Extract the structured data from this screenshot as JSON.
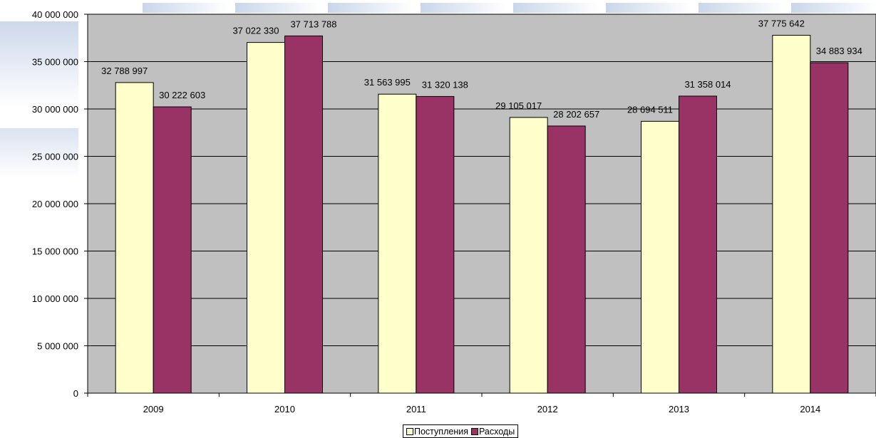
{
  "chart_data": {
    "type": "bar",
    "categories": [
      "2009",
      "2010",
      "2011",
      "2012",
      "2013",
      "2014"
    ],
    "series": [
      {
        "name": "Поступления",
        "color": "#FFFFCC",
        "values": [
          32788997,
          37022330,
          31563995,
          29105017,
          28694511,
          37775642
        ],
        "labels": [
          "32 788 997",
          "37 022 330",
          "31 563 995",
          "29 105 017",
          "28 694 511",
          "37 775 642"
        ]
      },
      {
        "name": "Расходы",
        "color": "#993366",
        "values": [
          30222603,
          37713788,
          31320138,
          28202657,
          31358014,
          34883934
        ],
        "labels": [
          "30 222 603",
          "37 713 788",
          "31 320 138",
          "28 202 657",
          "31 358 014",
          "34 883 934"
        ]
      }
    ],
    "ylim": [
      0,
      40000000
    ],
    "yticks": [
      0,
      5000000,
      10000000,
      15000000,
      20000000,
      25000000,
      30000000,
      35000000,
      40000000
    ],
    "ytick_labels": [
      "0",
      "5 000 000",
      "10 000 000",
      "15 000 000",
      "20 000 000",
      "25 000 000",
      "30 000 000",
      "35 000 000",
      "40 000 000"
    ],
    "grid": true,
    "plot_background": "#C0C0C0",
    "legend_position": "bottom-center"
  }
}
